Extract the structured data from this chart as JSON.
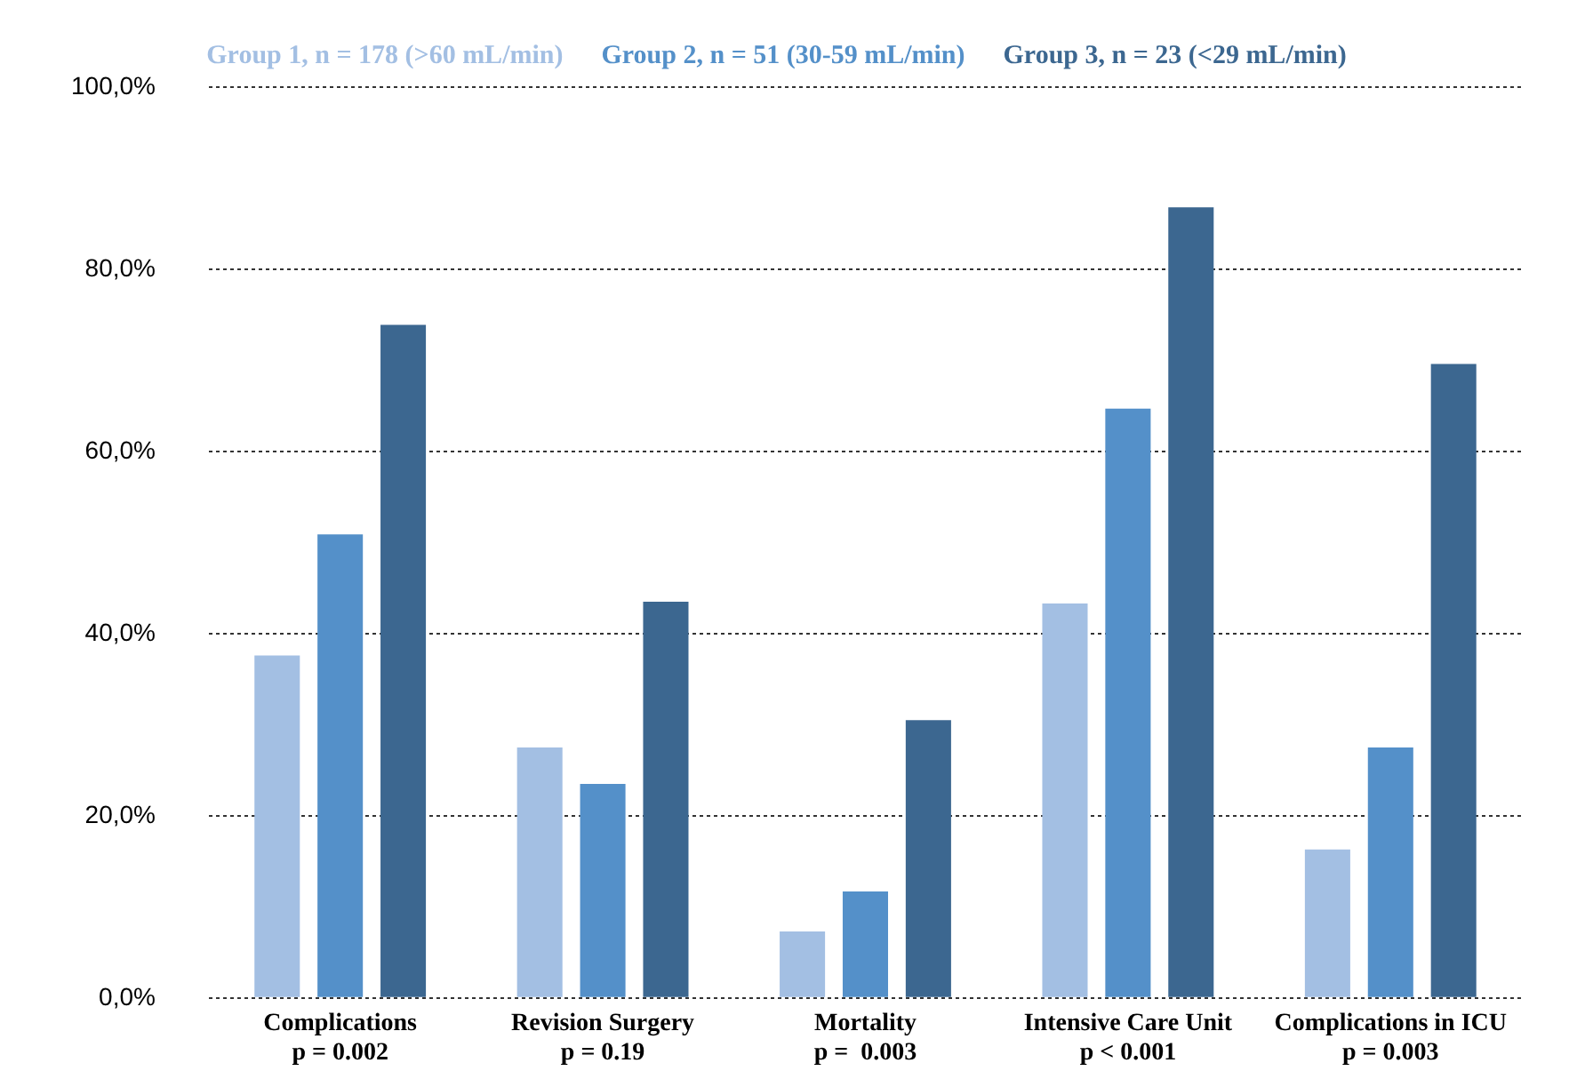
{
  "chart_data": {
    "type": "bar",
    "categories": [
      "Complications\np = 0.002",
      "Revision Surgery\np = 0.19",
      "Mortality\np =  0.003",
      "Intensive Care Unit\np < 0.001",
      "Complications in ICU\np = 0.003"
    ],
    "series": [
      {
        "name": "Group 1, n = 178 (>60 mL/min)",
        "color": "#a3bfe3",
        "values": [
          37.6,
          27.5,
          7.3,
          43.3,
          16.3
        ]
      },
      {
        "name": "Group 2, n = 51 (30-59 mL/min)",
        "color": "#5490c9",
        "values": [
          50.9,
          23.5,
          11.7,
          64.7,
          27.5
        ]
      },
      {
        "name": "Group 3, n = 23 (<29 mL/min)",
        "color": "#3c6790",
        "values": [
          73.9,
          43.5,
          30.5,
          86.8,
          69.6
        ]
      }
    ],
    "ylim": [
      0,
      100
    ],
    "yticks": [
      {
        "value": 0,
        "label": "0,0%"
      },
      {
        "value": 20,
        "label": "20,0%"
      },
      {
        "value": 40,
        "label": "40,0%"
      },
      {
        "value": 60,
        "label": "60,0%"
      },
      {
        "value": 80,
        "label": "80,0%"
      },
      {
        "value": 100,
        "label": "100,0%"
      }
    ],
    "grid": "y",
    "legend": "top"
  }
}
